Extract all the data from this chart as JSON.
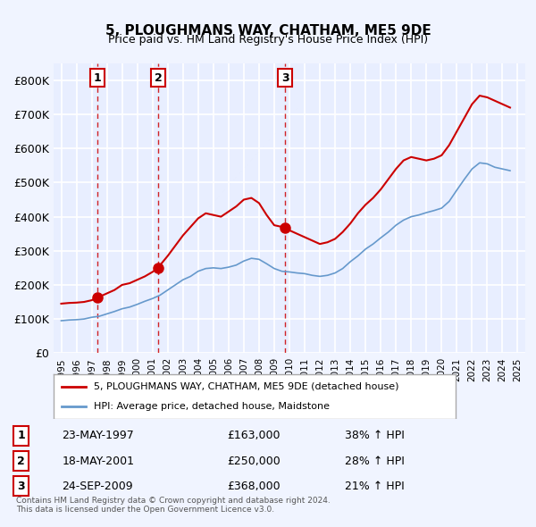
{
  "title": "5, PLOUGHMANS WAY, CHATHAM, ME5 9DE",
  "subtitle": "Price paid vs. HM Land Registry's House Price Index (HPI)",
  "ylabel": "",
  "ylim": [
    0,
    850000
  ],
  "yticks": [
    0,
    100000,
    200000,
    300000,
    400000,
    500000,
    600000,
    700000,
    800000
  ],
  "ytick_labels": [
    "£0",
    "£100K",
    "£200K",
    "£300K",
    "£400K",
    "£500K",
    "£600K",
    "£700K",
    "£800K"
  ],
  "background_color": "#f0f4ff",
  "plot_bg_color": "#e8eeff",
  "grid_color": "#ffffff",
  "red_line_color": "#cc0000",
  "blue_line_color": "#6699cc",
  "sale_marker_color": "#cc0000",
  "dashed_line_color": "#cc0000",
  "legend_box_color": "#ffffff",
  "legend_border_color": "#aaaaaa",
  "sale_events": [
    {
      "num": 1,
      "date": "23-MAY-1997",
      "price": 163000,
      "x_year": 1997.38,
      "label_price": "£163,000",
      "label_pct": "38% ↑ HPI"
    },
    {
      "num": 2,
      "date": "18-MAY-2001",
      "price": 250000,
      "x_year": 2001.38,
      "label_price": "£250,000",
      "label_pct": "28% ↑ HPI"
    },
    {
      "num": 3,
      "date": "24-SEP-2009",
      "price": 368000,
      "x_year": 2009.73,
      "label_price": "£368,000",
      "label_pct": "21% ↑ HPI"
    }
  ],
  "red_line_data": {
    "x": [
      1995.0,
      1995.5,
      1996.0,
      1996.5,
      1997.0,
      1997.38,
      1997.5,
      1998.0,
      1998.5,
      1999.0,
      1999.5,
      2000.0,
      2000.5,
      2001.0,
      2001.38,
      2001.5,
      2002.0,
      2002.5,
      2003.0,
      2003.5,
      2004.0,
      2004.5,
      2005.0,
      2005.5,
      2006.0,
      2006.5,
      2007.0,
      2007.5,
      2008.0,
      2008.5,
      2009.0,
      2009.73,
      2010.0,
      2010.5,
      2011.0,
      2011.5,
      2012.0,
      2012.5,
      2013.0,
      2013.5,
      2014.0,
      2014.5,
      2015.0,
      2015.5,
      2016.0,
      2016.5,
      2017.0,
      2017.5,
      2018.0,
      2018.5,
      2019.0,
      2019.5,
      2020.0,
      2020.5,
      2021.0,
      2021.5,
      2022.0,
      2022.5,
      2023.0,
      2023.5,
      2024.0,
      2024.5
    ],
    "y": [
      145000,
      147000,
      148000,
      150000,
      155000,
      163000,
      165000,
      175000,
      185000,
      200000,
      205000,
      215000,
      225000,
      238000,
      250000,
      258000,
      285000,
      315000,
      345000,
      370000,
      395000,
      410000,
      405000,
      400000,
      415000,
      430000,
      450000,
      455000,
      440000,
      405000,
      375000,
      368000,
      360000,
      350000,
      340000,
      330000,
      320000,
      325000,
      335000,
      355000,
      380000,
      410000,
      435000,
      455000,
      480000,
      510000,
      540000,
      565000,
      575000,
      570000,
      565000,
      570000,
      580000,
      610000,
      650000,
      690000,
      730000,
      755000,
      750000,
      740000,
      730000,
      720000
    ]
  },
  "blue_line_data": {
    "x": [
      1995.0,
      1995.5,
      1996.0,
      1996.5,
      1997.0,
      1997.5,
      1998.0,
      1998.5,
      1999.0,
      1999.5,
      2000.0,
      2000.5,
      2001.0,
      2001.5,
      2002.0,
      2002.5,
      2003.0,
      2003.5,
      2004.0,
      2004.5,
      2005.0,
      2005.5,
      2006.0,
      2006.5,
      2007.0,
      2007.5,
      2008.0,
      2008.5,
      2009.0,
      2009.5,
      2010.0,
      2010.5,
      2011.0,
      2011.5,
      2012.0,
      2012.5,
      2013.0,
      2013.5,
      2014.0,
      2014.5,
      2015.0,
      2015.5,
      2016.0,
      2016.5,
      2017.0,
      2017.5,
      2018.0,
      2018.5,
      2019.0,
      2019.5,
      2020.0,
      2020.5,
      2021.0,
      2021.5,
      2022.0,
      2022.5,
      2023.0,
      2023.5,
      2024.0,
      2024.5
    ],
    "y": [
      95000,
      97000,
      98000,
      100000,
      105000,
      108000,
      115000,
      122000,
      130000,
      135000,
      143000,
      152000,
      160000,
      170000,
      185000,
      200000,
      215000,
      225000,
      240000,
      248000,
      250000,
      248000,
      252000,
      258000,
      270000,
      278000,
      275000,
      262000,
      248000,
      240000,
      238000,
      235000,
      233000,
      228000,
      225000,
      228000,
      235000,
      248000,
      268000,
      285000,
      305000,
      320000,
      338000,
      355000,
      375000,
      390000,
      400000,
      405000,
      412000,
      418000,
      425000,
      445000,
      478000,
      510000,
      540000,
      558000,
      555000,
      545000,
      540000,
      535000
    ]
  },
  "legend_label_red": "5, PLOUGHMANS WAY, CHATHAM, ME5 9DE (detached house)",
  "legend_label_blue": "HPI: Average price, detached house, Maidstone",
  "footer_line1": "Contains HM Land Registry data © Crown copyright and database right 2024.",
  "footer_line2": "This data is licensed under the Open Government Licence v3.0.",
  "xlim": [
    1994.5,
    2025.5
  ],
  "xtick_years": [
    1995,
    1996,
    1997,
    1998,
    1999,
    2000,
    2001,
    2002,
    2003,
    2004,
    2005,
    2006,
    2007,
    2008,
    2009,
    2010,
    2011,
    2012,
    2013,
    2014,
    2015,
    2016,
    2017,
    2018,
    2019,
    2020,
    2021,
    2022,
    2023,
    2024,
    2025
  ]
}
